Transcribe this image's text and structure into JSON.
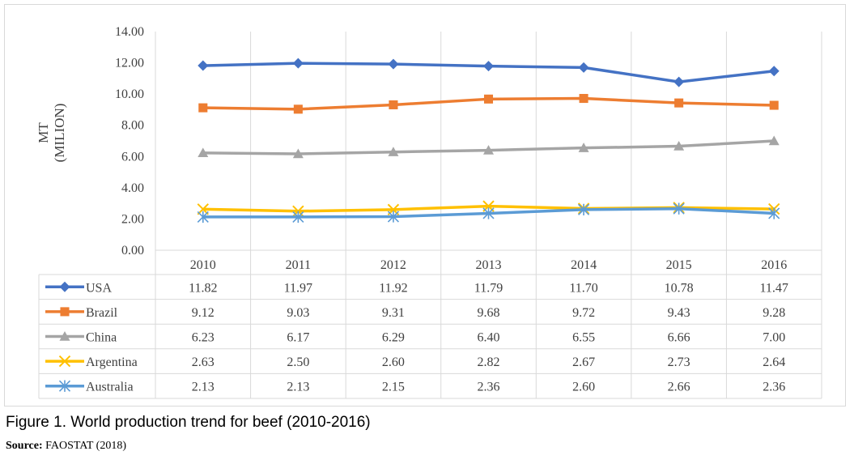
{
  "chart_data": {
    "type": "line",
    "categories": [
      "2010",
      "2011",
      "2012",
      "2013",
      "2014",
      "2015",
      "2016"
    ],
    "ylabel_lines": [
      "MT",
      "(MILION)"
    ],
    "ylim": [
      0,
      14
    ],
    "yticks": [
      "0.00",
      "2.00",
      "4.00",
      "6.00",
      "8.00",
      "10.00",
      "12.00",
      "14.00"
    ],
    "grid": "vertical",
    "legend": "data-table",
    "series": [
      {
        "name": "USA",
        "color": "#4472c4",
        "marker": "diamond",
        "values": [
          11.82,
          11.97,
          11.92,
          11.79,
          11.7,
          10.78,
          11.47
        ],
        "labels": [
          "11.82",
          "11.97",
          "11.92",
          "11.79",
          "11.70",
          "10.78",
          "11.47"
        ]
      },
      {
        "name": "Brazil",
        "color": "#ed7d31",
        "marker": "square",
        "values": [
          9.12,
          9.03,
          9.31,
          9.68,
          9.72,
          9.43,
          9.28
        ],
        "labels": [
          "9.12",
          "9.03",
          "9.31",
          "9.68",
          "9.72",
          "9.43",
          "9.28"
        ]
      },
      {
        "name": "China",
        "color": "#a5a5a5",
        "marker": "triangle",
        "values": [
          6.23,
          6.17,
          6.29,
          6.4,
          6.55,
          6.66,
          7.0
        ],
        "labels": [
          "6.23",
          "6.17",
          "6.29",
          "6.40",
          "6.55",
          "6.66",
          "7.00"
        ]
      },
      {
        "name": "Argentina",
        "color": "#ffc000",
        "marker": "x",
        "values": [
          2.63,
          2.5,
          2.6,
          2.82,
          2.67,
          2.73,
          2.64
        ],
        "labels": [
          "2.63",
          "2.50",
          "2.60",
          "2.82",
          "2.67",
          "2.73",
          "2.64"
        ]
      },
      {
        "name": "Australia",
        "color": "#5b9bd5",
        "marker": "star",
        "values": [
          2.13,
          2.13,
          2.15,
          2.36,
          2.6,
          2.66,
          2.36
        ],
        "labels": [
          "2.13",
          "2.13",
          "2.15",
          "2.36",
          "2.60",
          "2.66",
          "2.36"
        ]
      }
    ]
  },
  "caption": {
    "figure_title": "Figure 1. World production trend for beef (2010-2016)",
    "source_label": "Source:",
    "source_text": " FAOSTAT (2018)"
  }
}
